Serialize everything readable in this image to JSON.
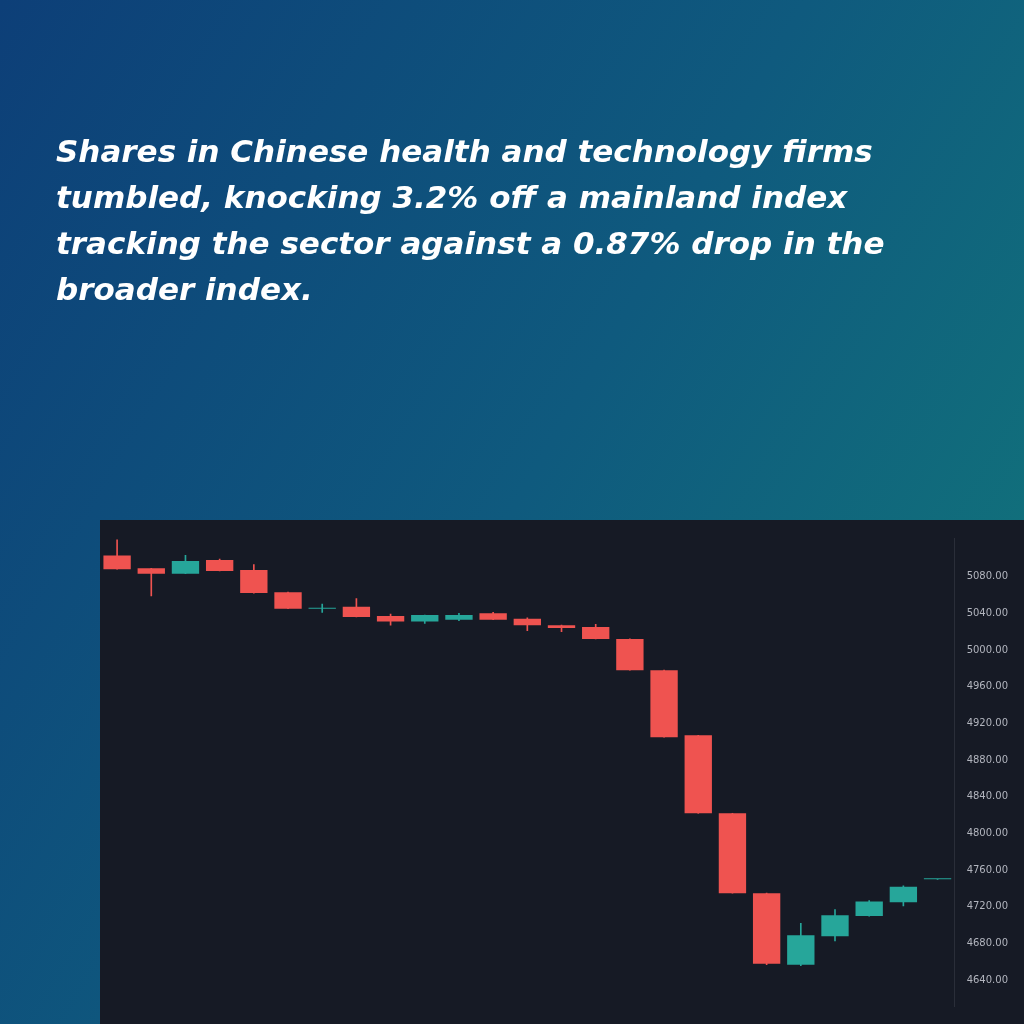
{
  "chart_data": {
    "type": "candlestick",
    "title": "Shares in Chinese health and technology firms tumbled, knocking 3.2% off a mainland index tracking the sector against a 0.87% drop in the broader index.",
    "categories": [
      null,
      null,
      null,
      null,
      null,
      null,
      null,
      null,
      null,
      null,
      null,
      null,
      null,
      null,
      null,
      null,
      null,
      null,
      null,
      null,
      null,
      null,
      null,
      null,
      null
    ],
    "ohlc": [
      [
        5103,
        5120,
        5088,
        5088
      ],
      [
        5089,
        5089,
        5059,
        5083
      ],
      [
        5083,
        5103,
        5083,
        5097
      ],
      [
        5098,
        5099,
        5086,
        5086
      ],
      [
        5087,
        5093,
        5062,
        5062
      ],
      [
        5063,
        5063,
        5045,
        5045
      ],
      [
        5045,
        5050,
        5041,
        5046
      ],
      [
        5047,
        5056,
        5036,
        5036
      ],
      [
        5037,
        5039,
        5027,
        5031
      ],
      [
        5031,
        5038,
        5029,
        5038
      ],
      [
        5033,
        5040,
        5032,
        5038
      ],
      [
        5040,
        5041,
        5033,
        5033
      ],
      [
        5034,
        5035,
        5021,
        5027
      ],
      [
        5027,
        5027,
        5020,
        5024
      ],
      [
        5025,
        5028,
        5012,
        5012
      ],
      [
        5012,
        5012,
        4978,
        4978
      ],
      [
        4978,
        4978,
        4905,
        4905
      ],
      [
        4907,
        4907,
        4822,
        4822
      ],
      [
        4822,
        4822,
        4735,
        4735
      ],
      [
        4735,
        4735,
        4657,
        4658
      ],
      [
        4657,
        4702,
        4656,
        4689
      ],
      [
        4688,
        4717,
        4683,
        4711
      ],
      [
        4710,
        4727,
        4710,
        4726
      ],
      [
        4725,
        4743,
        4721,
        4742
      ],
      [
        4750,
        4750,
        4750,
        4750
      ]
    ],
    "colors": [
      "#ef5350",
      "#ef5350",
      "#26a69a",
      "#ef5350",
      "#ef5350",
      "#ef5350",
      "#26a69a",
      "#ef5350",
      "#ef5350",
      "#26a69a",
      "#26a69a",
      "#ef5350",
      "#ef5350",
      "#ef5350",
      "#ef5350",
      "#ef5350",
      "#ef5350",
      "#ef5350",
      "#ef5350",
      "#ef5350",
      "#26a69a",
      "#26a69a",
      "#26a69a",
      "#26a69a",
      "#26a69a"
    ],
    "ylim": [
      4612,
      5122
    ],
    "yticks": [
      {
        "value": 4640,
        "label": "4640.00"
      },
      {
        "value": 4680,
        "label": "4680.00"
      },
      {
        "value": 4720,
        "label": "4720.00"
      },
      {
        "value": 4760,
        "label": "4760.00"
      },
      {
        "value": 4800,
        "label": "4800.00"
      },
      {
        "value": 4840,
        "label": "4840.00"
      },
      {
        "value": 4880,
        "label": "4880.00"
      },
      {
        "value": 4920,
        "label": "4920.00"
      },
      {
        "value": 4960,
        "label": "4960.00"
      },
      {
        "value": 5000,
        "label": "5000.00"
      },
      {
        "value": 5040,
        "label": "5040.00"
      },
      {
        "value": 5080,
        "label": "5080.00"
      }
    ],
    "tick_labels": "y"
  }
}
